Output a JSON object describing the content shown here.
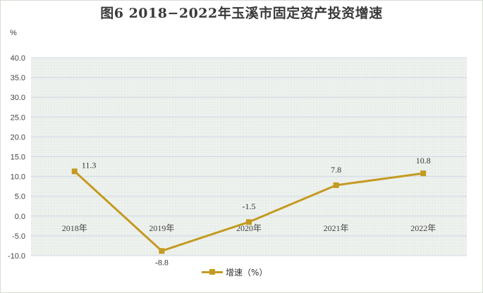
{
  "title": "图6    2018−2022年玉溪市固定资产投资增速",
  "unit": "%",
  "legend": {
    "label": "增速（%）"
  },
  "colors": {
    "series": "#c49a22",
    "grid": "#cfd8e6",
    "plot_bg": "#ecf0ec"
  },
  "chart_data": {
    "type": "line",
    "title": "图6    2018−2022年玉溪市固定资产投资增速",
    "ylabel": "%",
    "categories": [
      "2018年",
      "2019年",
      "2020年",
      "2021年",
      "2022年"
    ],
    "series": [
      {
        "name": "增速（%）",
        "values": [
          11.3,
          -8.8,
          -1.5,
          7.8,
          10.8
        ]
      }
    ],
    "data_labels": [
      "11.3",
      "-8.8",
      "-1.5",
      "7.8",
      "10.8"
    ],
    "ylim": [
      -10,
      40
    ],
    "yticks": [
      -10,
      -5,
      0,
      5,
      10,
      15,
      20,
      25,
      30,
      35,
      40
    ],
    "ytick_labels": [
      "-10.0",
      "-5.0",
      "0.0",
      "5.0",
      "10.0",
      "15.0",
      "20.0",
      "25.0",
      "30.0",
      "35.0",
      "40.0"
    ],
    "grid": true,
    "legend_position": "bottom"
  }
}
